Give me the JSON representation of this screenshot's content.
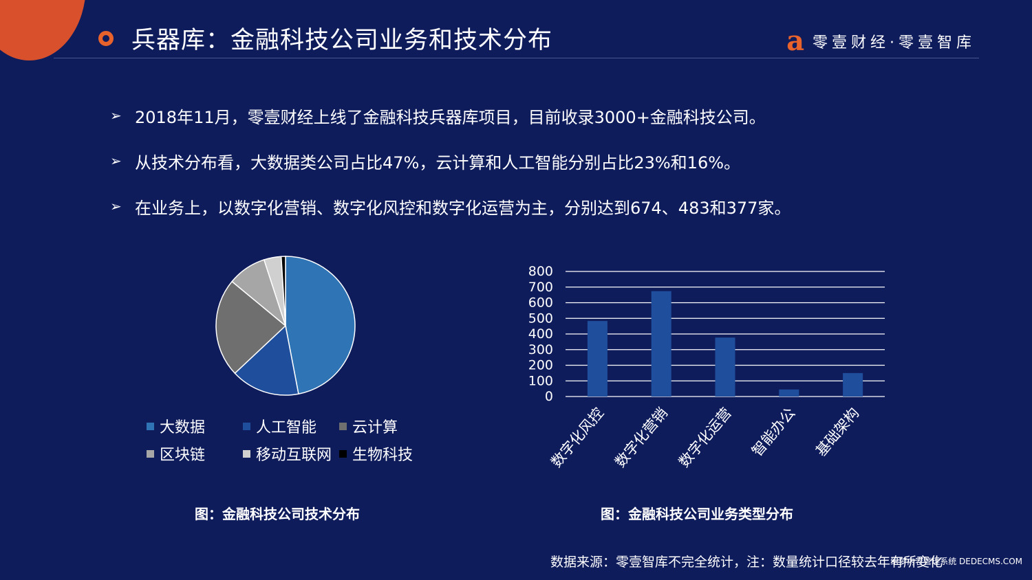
{
  "header": {
    "title": "兵器库：金融科技公司业务和技术分布",
    "brand_logo": "a",
    "brand": "零壹财经·零壹智库"
  },
  "bullets": [
    "2018年11月，零壹财经上线了金融科技兵器库项目，目前收录3000+金融科技公司。",
    "从技术分布看，大数据类公司占比47%，云计算和人工智能分别占比23%和16%。",
    "在业务上，以数字化营销、数字化风控和数字化运营为主，分别达到674、483和377家。"
  ],
  "bullet_marker": "➢",
  "chart_data": [
    {
      "type": "pie",
      "title": "",
      "caption": "图：金融科技公司技术分布",
      "categories": [
        "大数据",
        "人工智能",
        "云计算",
        "区块链",
        "移动互联网",
        "生物科技"
      ],
      "values": [
        47,
        16,
        23,
        9,
        4,
        1
      ],
      "colors": [
        "#2f74b5",
        "#1f4e9c",
        "#6f6f6f",
        "#a6a6a6",
        "#d0d0d0",
        "#000000"
      ],
      "legend": "bottom"
    },
    {
      "type": "bar",
      "title": "",
      "caption": "图：金融科技公司业务类型分布",
      "categories": [
        "数字化风控",
        "数字化营销",
        "数字化运营",
        "智能办公",
        "基础架构"
      ],
      "values": [
        483,
        674,
        377,
        45,
        150
      ],
      "yticks": [
        0,
        100,
        200,
        300,
        400,
        500,
        600,
        700,
        800
      ],
      "ylim": [
        0,
        800
      ],
      "grid": true,
      "color": "#1f4e9c"
    }
  ],
  "source": "数据来源：零壹智库不完全统计，注：数量统计口径较去年有所变化",
  "watermark": "织梦内容管理系统 DEDECMS.COM"
}
